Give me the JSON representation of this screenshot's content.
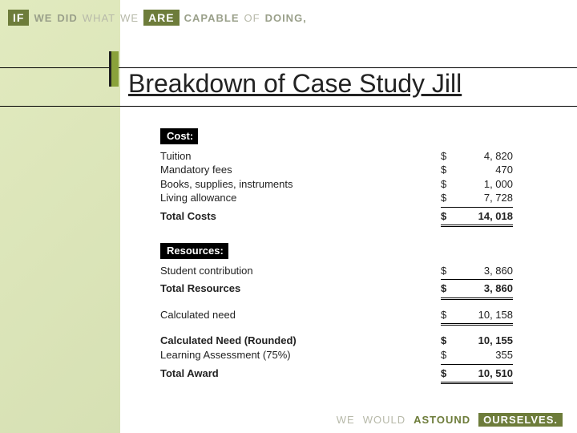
{
  "quote_top": {
    "box": "IF",
    "w1": "WE",
    "w2": "DID",
    "w3": "WHAT",
    "w4": "WE",
    "box2": "ARE",
    "w5": "CAPABLE",
    "w6": "OF",
    "w7": "DOING,"
  },
  "title": "Breakdown of Case Study Jill",
  "sections": {
    "cost_label": "Cost:",
    "resources_label": "Resources:"
  },
  "cost": {
    "items": [
      {
        "label": "Tuition",
        "currency": "$",
        "value": "4, 820"
      },
      {
        "label": "Mandatory fees",
        "currency": "$",
        "value": "470"
      },
      {
        "label": "Books, supplies, instruments",
        "currency": "$",
        "value": "1, 000"
      },
      {
        "label": "Living allowance",
        "currency": "$",
        "value": "7, 728"
      }
    ],
    "total_label": "Total Costs",
    "total_currency": "$",
    "total_value": "14, 018"
  },
  "resources": {
    "items": [
      {
        "label": "Student contribution",
        "currency": "$",
        "value": "3, 860"
      }
    ],
    "total_label": "Total Resources",
    "total_currency": "$",
    "total_value": "3, 860",
    "need_label": "Calculated need",
    "need_currency": "$",
    "need_value": "10, 158",
    "rounded_label": "Calculated Need (Rounded)",
    "rounded_currency": "$",
    "rounded_value": "10, 155",
    "assess_label": "Learning Assessment (75%)",
    "assess_currency": "$",
    "assess_value": "355",
    "award_label": "Total Award",
    "award_currency": "$",
    "award_value": "10, 510"
  },
  "quote_bottom": {
    "w1": "WE",
    "w2": "WOULD",
    "em": "ASTOUND",
    "box": "OURSELVES."
  }
}
